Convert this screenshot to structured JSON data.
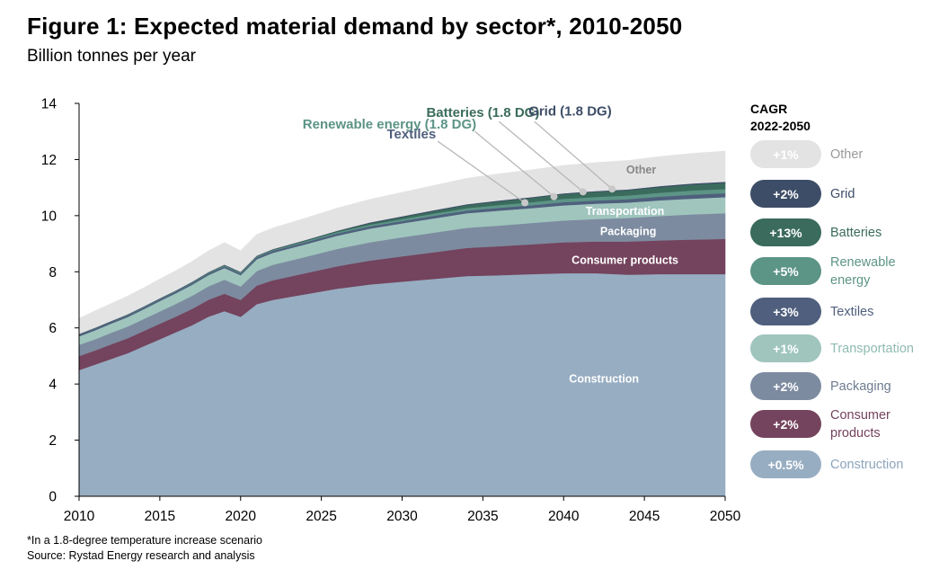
{
  "title": "Figure 1: Expected material demand by sector*, 2010-2050",
  "subtitle": "Billion tonnes per year",
  "footnotes": [
    "*In a 1.8-degree temperature increase scenario",
    "Source: Rystad Energy research and analysis"
  ],
  "legend": {
    "header_line1": "CAGR",
    "header_line2": "2022-2050",
    "items": [
      {
        "name": "Other",
        "cagr": "+1%",
        "color": "#e3e3e3",
        "pill_text_color": "#ffffff",
        "text_color": "#9a9a9a"
      },
      {
        "name": "Grid",
        "cagr": "+2%",
        "color": "#3d4d67",
        "pill_text_color": "#ffffff",
        "text_color": "#3d4d67"
      },
      {
        "name": "Batteries",
        "cagr": "+13%",
        "color": "#3a6b5c",
        "pill_text_color": "#ffffff",
        "text_color": "#3a6b5c"
      },
      {
        "name": "Renewable energy",
        "name_lines": [
          "Renewable",
          "energy"
        ],
        "cagr": "+5%",
        "color": "#5c9486",
        "pill_text_color": "#ffffff",
        "text_color": "#5c9486"
      },
      {
        "name": "Textiles",
        "cagr": "+3%",
        "color": "#4f5f7d",
        "pill_text_color": "#ffffff",
        "text_color": "#4f5f7d"
      },
      {
        "name": "Transportation",
        "cagr": "+1%",
        "color": "#9fc5bd",
        "pill_text_color": "#ffffff",
        "text_color": "#8fbab1"
      },
      {
        "name": "Packaging",
        "cagr": "+2%",
        "color": "#7d8ba0",
        "pill_text_color": "#ffffff",
        "text_color": "#6e7c91"
      },
      {
        "name": "Consumer products",
        "name_lines": [
          "Consumer",
          "products"
        ],
        "cagr": "+2%",
        "color": "#74435d",
        "pill_text_color": "#ffffff",
        "text_color": "#74435d"
      },
      {
        "name": "Construction",
        "cagr": "+0.5%",
        "color": "#97adc2",
        "pill_text_color": "#ffffff",
        "text_color": "#8ca4bc"
      }
    ]
  },
  "chart_data": {
    "type": "area",
    "stacked": true,
    "title": "Figure 1: Expected material demand by sector*, 2010-2050",
    "subtitle": "Billion tonnes per year",
    "x": [
      2010,
      2011,
      2012,
      2013,
      2014,
      2015,
      2016,
      2017,
      2018,
      2019,
      2020,
      2021,
      2022,
      2024,
      2026,
      2028,
      2030,
      2032,
      2034,
      2036,
      2038,
      2040,
      2042,
      2044,
      2046,
      2048,
      2050
    ],
    "xlim": [
      2010,
      2050
    ],
    "ylim": [
      0,
      14
    ],
    "xticks": [
      2010,
      2015,
      2020,
      2025,
      2030,
      2035,
      2040,
      2045,
      2050
    ],
    "yticks": [
      0,
      2,
      4,
      6,
      8,
      10,
      12,
      14
    ],
    "series": [
      {
        "name": "Construction",
        "color": "#97adc2",
        "values": [
          4.5,
          4.7,
          4.9,
          5.1,
          5.35,
          5.6,
          5.85,
          6.1,
          6.4,
          6.6,
          6.4,
          6.85,
          7.0,
          7.2,
          7.4,
          7.55,
          7.65,
          7.75,
          7.85,
          7.88,
          7.92,
          7.95,
          7.95,
          7.9,
          7.92,
          7.92,
          7.92
        ]
      },
      {
        "name": "Consumer products",
        "color": "#74435d",
        "values": [
          0.5,
          0.5,
          0.52,
          0.53,
          0.54,
          0.55,
          0.56,
          0.58,
          0.6,
          0.62,
          0.6,
          0.66,
          0.7,
          0.75,
          0.8,
          0.85,
          0.9,
          0.95,
          1.0,
          1.03,
          1.06,
          1.1,
          1.13,
          1.18,
          1.2,
          1.23,
          1.25
        ]
      },
      {
        "name": "Packaging",
        "color": "#7d8ba0",
        "values": [
          0.4,
          0.4,
          0.41,
          0.42,
          0.43,
          0.44,
          0.45,
          0.47,
          0.48,
          0.5,
          0.48,
          0.52,
          0.55,
          0.58,
          0.62,
          0.65,
          0.68,
          0.7,
          0.72,
          0.74,
          0.76,
          0.78,
          0.8,
          0.84,
          0.87,
          0.9,
          0.92
        ]
      },
      {
        "name": "Transportation",
        "color": "#9fc5bd",
        "values": [
          0.3,
          0.32,
          0.33,
          0.34,
          0.35,
          0.37,
          0.38,
          0.39,
          0.4,
          0.42,
          0.4,
          0.42,
          0.43,
          0.45,
          0.47,
          0.49,
          0.5,
          0.51,
          0.52,
          0.53,
          0.53,
          0.54,
          0.55,
          0.55,
          0.56,
          0.56,
          0.57
        ]
      },
      {
        "name": "Textiles",
        "color": "#4f5f7d",
        "values": [
          0.06,
          0.06,
          0.06,
          0.06,
          0.06,
          0.06,
          0.06,
          0.06,
          0.06,
          0.06,
          0.06,
          0.07,
          0.07,
          0.07,
          0.08,
          0.08,
          0.08,
          0.09,
          0.09,
          0.1,
          0.1,
          0.11,
          0.11,
          0.12,
          0.13,
          0.14,
          0.14
        ]
      },
      {
        "name": "Renewable energy (1.8 DG)",
        "color": "#5c9486",
        "values": [
          0.01,
          0.01,
          0.01,
          0.02,
          0.02,
          0.02,
          0.02,
          0.02,
          0.02,
          0.03,
          0.03,
          0.03,
          0.03,
          0.04,
          0.05,
          0.06,
          0.07,
          0.08,
          0.09,
          0.1,
          0.11,
          0.12,
          0.13,
          0.13,
          0.14,
          0.15,
          0.15
        ]
      },
      {
        "name": "Batteries (1.8 DG)",
        "color": "#3a6b5c",
        "values": [
          0.0,
          0.0,
          0.0,
          0.0,
          0.0,
          0.0,
          0.0,
          0.01,
          0.01,
          0.01,
          0.01,
          0.01,
          0.01,
          0.02,
          0.03,
          0.05,
          0.07,
          0.09,
          0.11,
          0.13,
          0.15,
          0.17,
          0.18,
          0.19,
          0.2,
          0.21,
          0.22
        ]
      },
      {
        "name": "Grid (1.8 DG)",
        "color": "#3d4d67",
        "values": [
          0.02,
          0.02,
          0.02,
          0.02,
          0.02,
          0.02,
          0.02,
          0.02,
          0.02,
          0.02,
          0.02,
          0.02,
          0.02,
          0.02,
          0.02,
          0.03,
          0.03,
          0.03,
          0.03,
          0.03,
          0.03,
          0.03,
          0.03,
          0.03,
          0.04,
          0.04,
          0.04
        ]
      },
      {
        "name": "Other",
        "color": "#e3e3e3",
        "values": [
          0.55,
          0.6,
          0.62,
          0.64,
          0.66,
          0.68,
          0.7,
          0.72,
          0.75,
          0.78,
          0.75,
          0.75,
          0.75,
          0.78,
          0.8,
          0.82,
          0.85,
          0.88,
          0.92,
          0.95,
          0.97,
          0.99,
          1.01,
          1.03,
          1.05,
          1.07,
          1.09
        ]
      }
    ],
    "area_labels": [
      "Other",
      "Transportation",
      "Packaging",
      "Consumer products",
      "Construction"
    ],
    "callouts": [
      {
        "text": "Batteries (1.8 DG)",
        "series": "Batteries (1.8 DG)",
        "point": {
          "x": 2041.2,
          "y": 10.85
        }
      },
      {
        "text": "Grid (1.8 DG)",
        "series": "Grid (1.8 DG)",
        "point": {
          "x": 2043,
          "y": 10.95
        }
      },
      {
        "text": "Renewable energy (1.8 DG)",
        "series": "Renewable energy (1.8 DG)",
        "point": {
          "x": 2039.4,
          "y": 10.68
        }
      },
      {
        "text": "Textiles",
        "series": "Textiles",
        "point": {
          "x": 2037.6,
          "y": 10.46
        }
      }
    ],
    "grid": false,
    "legend_position": "right"
  }
}
